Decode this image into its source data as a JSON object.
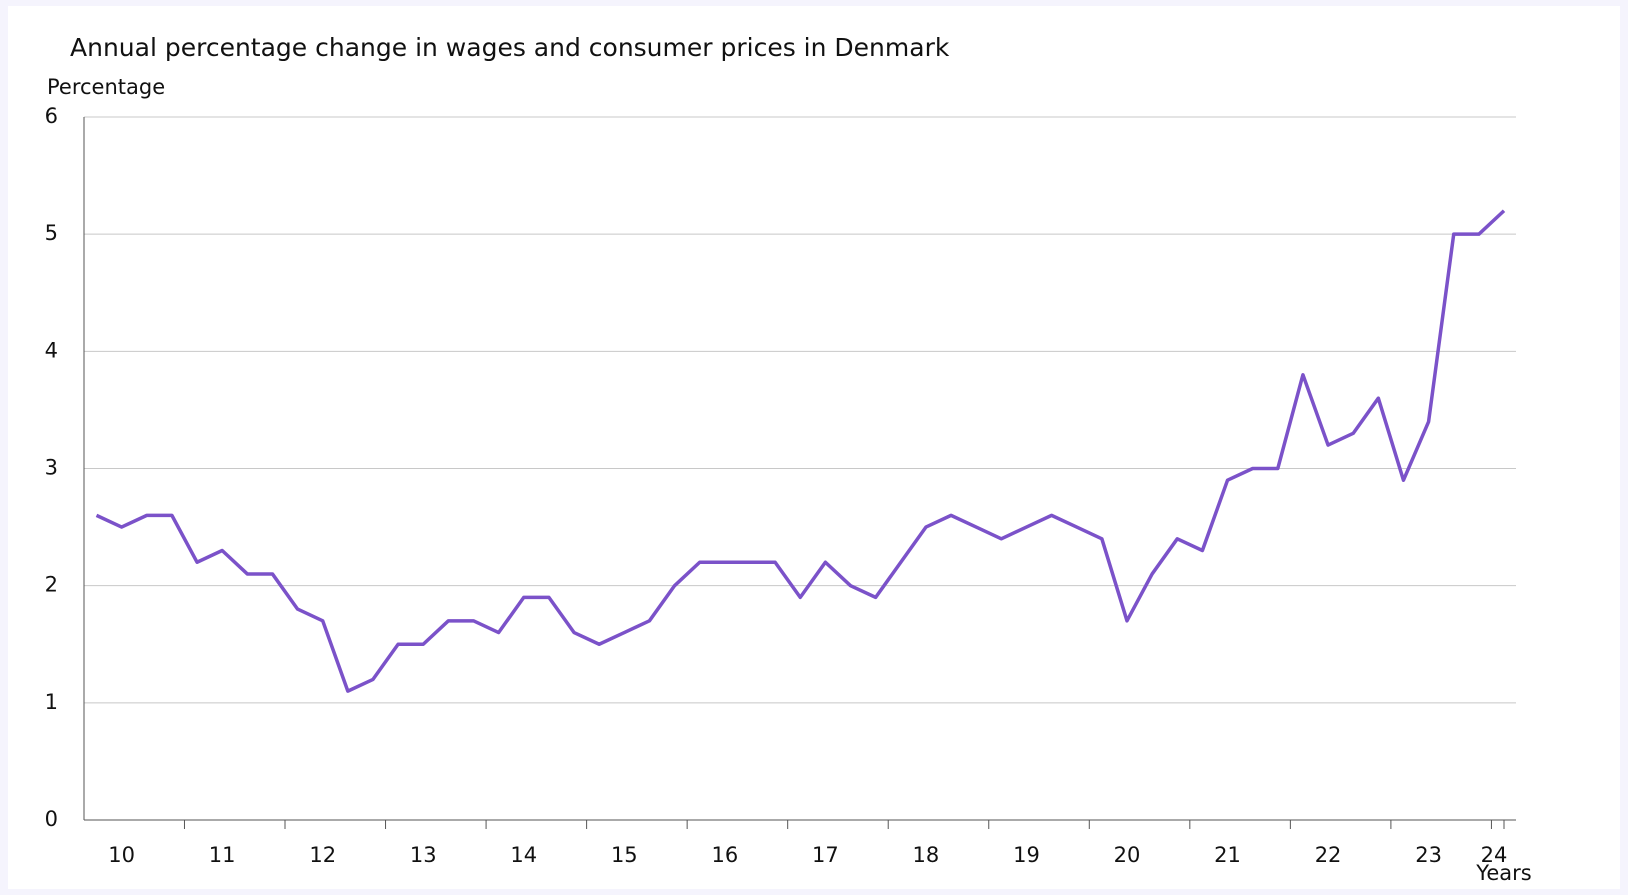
{
  "chart_data": {
    "type": "line",
    "title": "Annual percentage change in wages and consumer prices in Denmark",
    "y_label": "Percentage",
    "x_label": "Years",
    "categories": [
      null,
      "10",
      null,
      null,
      null,
      "11",
      null,
      null,
      null,
      "12",
      null,
      null,
      null,
      "13",
      null,
      null,
      null,
      "14",
      null,
      null,
      null,
      "15",
      null,
      null,
      null,
      "16",
      null,
      null,
      null,
      "17",
      null,
      null,
      null,
      "18",
      null,
      null,
      null,
      "19",
      null,
      null,
      null,
      "20",
      null,
      null,
      null,
      "21",
      null,
      null,
      null,
      "22",
      null,
      null,
      null,
      "23",
      null,
      null,
      "24"
    ],
    "series": [
      {
        "color": "#7b52c9",
        "values": [
          2.6,
          2.5,
          2.6,
          2.6,
          2.2,
          2.3,
          2.1,
          2.1,
          1.8,
          1.7,
          1.1,
          1.2,
          1.5,
          1.5,
          1.7,
          1.7,
          1.6,
          1.9,
          1.9,
          1.6,
          1.5,
          1.6,
          1.7,
          2.0,
          2.2,
          2.2,
          2.2,
          2.2,
          1.9,
          2.2,
          2.0,
          1.9,
          2.2,
          2.5,
          2.6,
          2.5,
          2.4,
          2.5,
          2.6,
          2.5,
          2.4,
          1.7,
          2.1,
          2.4,
          2.3,
          2.9,
          3.0,
          3.0,
          3.8,
          3.2,
          3.3,
          3.6,
          2.9,
          3.4,
          5.0,
          5.0,
          5.2
        ]
      }
    ],
    "ylim": [
      0,
      6
    ],
    "yticks": [
      0,
      1,
      2,
      3,
      4,
      5,
      6
    ],
    "grid": true
  }
}
